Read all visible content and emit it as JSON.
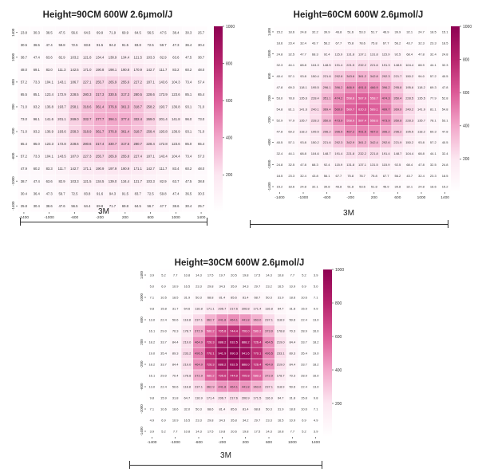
{
  "panels": [
    {
      "title": "Height=90CM 600W 2.6μmol/J",
      "scale_label": "3M",
      "chart_data": {
        "type": "heatmap",
        "title": "Height=90CM 600W 2.6μmol/J",
        "x_ticks": [
          "-1400",
          "-1000",
          "-600",
          "-200",
          "200",
          "600",
          "1000",
          "1400"
        ],
        "y_ticks": [
          "1400",
          "1000",
          "600",
          "200",
          "-200",
          "-600",
          "-1000",
          "-1400"
        ],
        "colorbar_ticks": [
          "200",
          "400",
          "600",
          "800",
          "1000"
        ],
        "vmin": 0,
        "vmax": 1000,
        "colormap": [
          "#ffffff",
          "#fce7f1",
          "#f2a6c9",
          "#dc5a97",
          "#b6236c",
          "#8e0152"
        ],
        "values": [
          [
            23.8,
            30.3,
            38.5,
            47.5,
            56.6,
            64.5,
            69.9,
            71.9,
            69.9,
            64.5,
            56.5,
            47.5,
            38.4,
            30.3,
            25.7
          ],
          [
            30.5,
            36.5,
            47.4,
            59.8,
            72.5,
            83.8,
            91.5,
            94.2,
            91.5,
            83.8,
            72.5,
            59.7,
            47.3,
            36.4,
            30.4
          ],
          [
            38.7,
            47.4,
            63.6,
            82.9,
            103.2,
            121.8,
            134.4,
            138.9,
            134.4,
            121.5,
            103.3,
            82.9,
            63.6,
            47.5,
            38.7
          ],
          [
            48.0,
            69.1,
            83.0,
            111.3,
            142.5,
            171.0,
            190.8,
            198.1,
            190.8,
            170.9,
            142.7,
            111.7,
            83.2,
            60.2,
            48.0
          ],
          [
            57.2,
            73.3,
            104.1,
            143.1,
            186.7,
            227.1,
            255.7,
            265.9,
            255.6,
            227.2,
            187.1,
            143.6,
            104.3,
            73.4,
            57.4
          ],
          [
            65.5,
            85.1,
            123.4,
            172.9,
            228.5,
            280.3,
            317.3,
            330.5,
            317.3,
            280.5,
            228.6,
            173.9,
            123.6,
            85.1,
            65.4
          ],
          [
            71.0,
            93.2,
            136.8,
            193.7,
            258.1,
            318.6,
            361.4,
            376.9,
            361.3,
            318.7,
            258.2,
            193.7,
            136.8,
            93.1,
            71.0
          ],
          [
            73.0,
            96.1,
            141.6,
            201.1,
            269.0,
            332.7,
            377.7,
            394.1,
            377.4,
            332.4,
            269.0,
            201.4,
            141.8,
            96.0,
            73.0
          ],
          [
            71.0,
            93.2,
            136.9,
            193.6,
            258.3,
            318.9,
            361.7,
            376.9,
            361.4,
            318.7,
            258.4,
            193.8,
            136.9,
            93.1,
            71.0
          ],
          [
            65.4,
            85.0,
            123.3,
            172.8,
            228.6,
            280.6,
            317.4,
            330.7,
            317.5,
            280.7,
            228.4,
            172.8,
            123.6,
            85.0,
            65.4
          ],
          [
            57.2,
            73.3,
            104.1,
            143.5,
            187.0,
            227.3,
            255.7,
            265.9,
            255.8,
            227.4,
            187.1,
            143.4,
            104.4,
            73.4,
            57.3
          ],
          [
            47.9,
            60.2,
            83.3,
            111.7,
            142.7,
            171.1,
            190.9,
            197.9,
            190.9,
            171.1,
            142.7,
            111.7,
            83.4,
            60.2,
            48.0
          ],
          [
            38.7,
            47.4,
            63.6,
            82.9,
            103.3,
            121.5,
            134.5,
            139.0,
            134.4,
            121.7,
            103.3,
            82.9,
            63.7,
            47.5,
            38.8
          ],
          [
            30.4,
            36.4,
            47.3,
            59.7,
            72.5,
            83.8,
            91.6,
            94.3,
            91.5,
            83.7,
            72.5,
            59.8,
            47.4,
            36.5,
            30.5
          ],
          [
            25.8,
            30.4,
            38.6,
            47.6,
            56.5,
            64.4,
            69.8,
            71.7,
            69.8,
            64.5,
            56.7,
            47.7,
            38.6,
            30.4,
            25.7
          ]
        ]
      }
    },
    {
      "title": "Height=60CM 600W 2.6μmol/J",
      "scale_label": "3M",
      "chart_data": {
        "type": "heatmap",
        "title": "Height=60CM 600W 2.6μmol/J",
        "x_ticks": [
          "-1400",
          "-1000",
          "-600",
          "-200",
          "200",
          "600",
          "1000",
          "1400"
        ],
        "y_ticks": [
          "1400",
          "1000",
          "600",
          "200",
          "-200",
          "-600",
          "-1000",
          "-1400"
        ],
        "colorbar_ticks": [
          "200",
          "400",
          "600",
          "800",
          "1000"
        ],
        "vmin": 0,
        "vmax": 1000,
        "colormap": [
          "#ffffff",
          "#fce7f1",
          "#f2a6c9",
          "#dc5a97",
          "#b6236c",
          "#8e0152"
        ],
        "values": [
          [
            15.2,
            18.6,
            24.8,
            32.2,
            39.9,
            46.8,
            51.6,
            53.3,
            51.7,
            46.9,
            39.9,
            32.1,
            24.7,
            18.5,
            15.1
          ],
          [
            18.6,
            23.4,
            32.4,
            43.7,
            56.2,
            67.7,
            75.8,
            78.6,
            75.8,
            67.7,
            56.2,
            43.7,
            32.3,
            23.3,
            18.5
          ],
          [
            24.8,
            32.5,
            47.7,
            68.3,
            92.4,
            115.9,
            131.8,
            137.1,
            131.8,
            115.9,
            92.5,
            68.4,
            47.8,
            32.4,
            24.8
          ],
          [
            32.3,
            44.1,
            68.8,
            104.3,
            148.5,
            191.4,
            221.5,
            232.2,
            221.6,
            191.3,
            148.5,
            104.4,
            68.9,
            44.1,
            32.3
          ],
          [
            40.4,
            57.1,
            93.8,
            150.4,
            221.8,
            292.8,
            343.6,
            361.2,
            342.8,
            292.3,
            221.7,
            150.2,
            94.0,
            57.2,
            40.5
          ],
          [
            47.8,
            69.3,
            118.1,
            195.5,
            296.1,
            396.2,
            466.9,
            491.0,
            466.9,
            396.2,
            295.8,
            195.6,
            118.2,
            69.3,
            47.8
          ],
          [
            53.0,
            78.0,
            135.6,
            228.4,
            351.1,
            474.2,
            558.8,
            587.9,
            558.7,
            474.3,
            350.4,
            228.5,
            135.5,
            77.9,
            52.8
          ],
          [
            54.8,
            81.1,
            141.6,
            240.1,
            369.4,
            500.0,
            589.7,
            620.3,
            589.1,
            499.7,
            369.0,
            240.2,
            141.9,
            81.1,
            54.8
          ],
          [
            52.9,
            77.9,
            135.7,
            228.3,
            350.8,
            473.9,
            558.9,
            587.4,
            558.6,
            473.9,
            350.8,
            228.3,
            135.7,
            78.1,
            53.1
          ],
          [
            47.8,
            69.2,
            118.2,
            195.5,
            296.2,
            396.5,
            467.2,
            491.5,
            467.0,
            396.2,
            296.2,
            195.5,
            118.2,
            69.3,
            47.8
          ],
          [
            40.5,
            57.1,
            93.8,
            150.2,
            221.6,
            292.3,
            342.9,
            361.2,
            342.4,
            292.6,
            221.9,
            150.2,
            93.8,
            57.2,
            40.5
          ],
          [
            32.4,
            44.1,
            68.8,
            104.6,
            148.7,
            191.4,
            221.8,
            232.2,
            221.8,
            191.4,
            148.7,
            104.4,
            68.8,
            44.1,
            32.4
          ],
          [
            24.8,
            32.5,
            47.8,
            68.3,
            92.4,
            115.9,
            131.8,
            137.1,
            131.5,
            115.9,
            92.5,
            68.4,
            47.8,
            32.5,
            24.8
          ],
          [
            18.5,
            23.3,
            32.4,
            43.8,
            56.1,
            67.7,
            75.8,
            78.7,
            75.8,
            67.7,
            56.2,
            43.7,
            32.4,
            23.3,
            18.5
          ],
          [
            15.2,
            18.6,
            24.8,
            32.1,
            39.8,
            46.8,
            51.8,
            53.6,
            51.8,
            46.9,
            39.8,
            32.1,
            24.8,
            18.6,
            15.2
          ]
        ]
      }
    },
    {
      "title": "Height=30CM 600W 2.6μmol/J",
      "scale_label": "3M",
      "chart_data": {
        "type": "heatmap",
        "title": "Height=30CM 600W 2.6μmol/J",
        "x_ticks": [
          "-1400",
          "-1000",
          "-600",
          "-200",
          "200",
          "600",
          "1000",
          "1400"
        ],
        "y_ticks": [
          "1400",
          "1000",
          "600",
          "200",
          "-200",
          "-600",
          "-1000",
          "-1400"
        ],
        "colorbar_ticks": [
          "200",
          "400",
          "600",
          "800",
          "1000"
        ],
        "vmin": 0,
        "vmax": 1000,
        "colormap": [
          "#ffffff",
          "#fce7f1",
          "#f2a6c9",
          "#dc5a97",
          "#b6236c",
          "#8e0152"
        ],
        "values": [
          [
            3.9,
            5.2,
            7.7,
            10.8,
            14.3,
            17.5,
            19.7,
            20.5,
            19.8,
            17.5,
            14.3,
            10.8,
            7.7,
            5.2,
            3.9
          ],
          [
            5.0,
            6.9,
            10.9,
            16.5,
            23.3,
            29.8,
            34.3,
            35.9,
            34.3,
            29.7,
            23.2,
            16.5,
            10.9,
            6.9,
            5.0
          ],
          [
            7.1,
            10.5,
            18.5,
            31.9,
            50.3,
            68.8,
            81.4,
            85.6,
            81.4,
            68.7,
            50.3,
            31.9,
            18.6,
            10.6,
            7.1
          ],
          [
            9.8,
            15.8,
            31.7,
            64.6,
            116.8,
            171.1,
            206.7,
            217.6,
            206.8,
            171.4,
            116.8,
            64.7,
            31.8,
            15.9,
            9.9
          ],
          [
            13.0,
            22.4,
            50.6,
            118.8,
            237.1,
            362.7,
            441.8,
            464.1,
            441.8,
            363.0,
            237.1,
            118.9,
            50.6,
            22.4,
            13.0
          ],
          [
            16.1,
            29.0,
            70.3,
            178.7,
            372.9,
            580.2,
            705.8,
            744.4,
            706.0,
            580.2,
            373.0,
            178.8,
            70.3,
            28.9,
            16.0
          ],
          [
            18.2,
            33.7,
            84.4,
            219.0,
            464.9,
            726.3,
            888.2,
            932.5,
            888.2,
            726.4,
            464.5,
            219.0,
            84.4,
            33.7,
            18.2
          ],
          [
            19.0,
            35.4,
            89.3,
            233.2,
            496.5,
            770.1,
            941.9,
            990.3,
            941.6,
            770.1,
            496.5,
            233.1,
            89.3,
            35.4,
            19.0
          ],
          [
            18.2,
            33.7,
            84.4,
            219.0,
            464.9,
            726.3,
            888.2,
            932.5,
            888.0,
            726.4,
            464.9,
            219.0,
            84.4,
            33.7,
            18.2
          ],
          [
            16.1,
            29.0,
            70.4,
            178.8,
            372.9,
            580.2,
            705.6,
            744.0,
            705.8,
            580.2,
            372.9,
            178.7,
            70.3,
            28.9,
            16.0
          ],
          [
            13.0,
            22.4,
            50.6,
            118.8,
            237.1,
            362.9,
            441.8,
            464.1,
            441.8,
            363.0,
            237.1,
            118.9,
            50.6,
            22.4,
            13.0
          ],
          [
            9.8,
            15.9,
            31.8,
            64.7,
            116.9,
            171.4,
            206.7,
            217.6,
            206.9,
            171.5,
            116.9,
            64.7,
            31.8,
            15.8,
            9.8
          ],
          [
            7.1,
            10.6,
            18.6,
            32.0,
            50.3,
            68.6,
            81.4,
            85.6,
            81.4,
            68.8,
            50.3,
            31.9,
            18.6,
            10.6,
            7.1
          ],
          [
            4.9,
            6.9,
            10.9,
            16.5,
            23.3,
            29.8,
            34.3,
            35.8,
            34.2,
            29.7,
            23.3,
            16.5,
            10.9,
            6.9,
            4.9
          ],
          [
            3.9,
            5.2,
            7.7,
            10.8,
            14.3,
            17.5,
            19.8,
            20.6,
            19.8,
            17.5,
            14.3,
            10.8,
            7.7,
            5.2,
            3.9
          ]
        ]
      }
    }
  ]
}
